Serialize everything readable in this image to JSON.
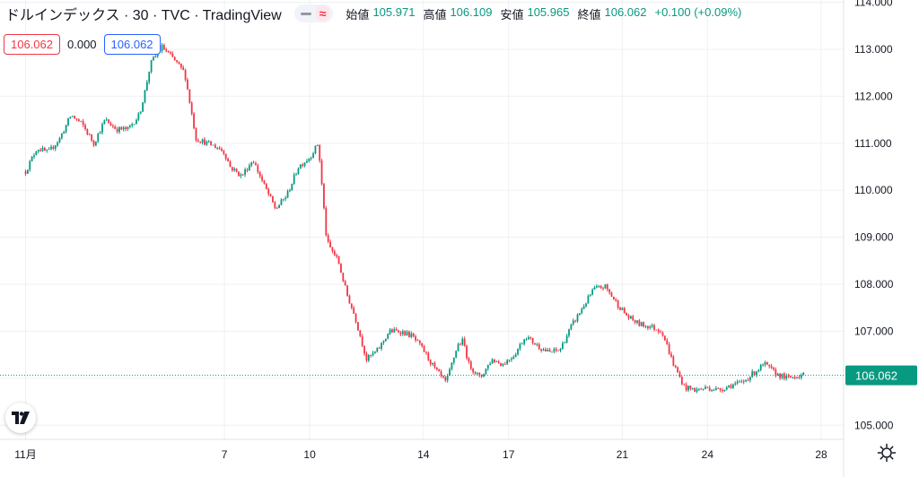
{
  "header": {
    "symbol_title": "ドルインデックス · 30 · TVC · TradingView",
    "ohlc": [
      {
        "label": "始値",
        "value": "105.971"
      },
      {
        "label": "高値",
        "value": "106.109"
      },
      {
        "label": "安値",
        "value": "105.965"
      },
      {
        "label": "終値",
        "value": "106.062"
      },
      {
        "label": "",
        "value": "+0.100 (+0.09%)"
      }
    ]
  },
  "badges": {
    "left_price": "106.062",
    "middle": "0.000",
    "right_price": "106.062"
  },
  "colors": {
    "up": "#089981",
    "down": "#f23645",
    "last_price_bg": "#089981",
    "grid": "#eef0f3",
    "axis_text": "#131722"
  },
  "icons": {
    "logo": "tradingview-logo-icon",
    "settings": "gear-icon"
  },
  "chart_data": {
    "type": "line",
    "title": "ドルインデックス · 30 · TVC · TradingView",
    "y_axis": {
      "ticks": [
        "105.000",
        "106.000",
        "107.000",
        "108.000",
        "109.000",
        "110.000",
        "111.000",
        "112.000",
        "113.000",
        "114.000"
      ],
      "range": [
        104.7,
        114.05
      ]
    },
    "x_axis": {
      "ticks": [
        "11月",
        "7",
        "10",
        "14",
        "17",
        "21",
        "24",
        "28"
      ]
    },
    "last_price": "106.062",
    "grid": true,
    "series": [
      {
        "x": [
          0,
          0.4,
          0.8,
          1.2,
          1.6,
          2.0,
          2.4,
          2.8,
          3.2,
          3.6,
          4.0,
          4.2,
          4.4,
          4.8,
          5.2,
          5.6,
          6.0,
          6.4,
          6.8,
          7.0,
          7.2,
          7.6,
          8.0,
          8.4,
          8.8,
          9.2,
          9.6,
          10.0,
          10.3,
          10.6,
          11.0,
          11.3,
          11.6,
          12.0,
          12.4,
          12.8,
          13.2,
          13.6,
          14.0,
          14.4,
          14.8,
          15.2,
          15.4,
          15.6,
          16.0,
          16.4,
          16.8,
          17.2,
          17.6,
          18.0,
          18.4,
          18.8,
          19.2,
          19.6,
          20.0,
          20.4,
          20.8,
          21.2,
          21.6,
          22.0,
          22.4,
          22.8,
          23.2,
          23.6,
          24.0,
          24.4,
          24.8,
          25.2,
          25.6,
          26.0,
          26.4,
          26.8,
          27.2,
          27.4
        ],
        "y": [
          110.4,
          110.9,
          110.8,
          111.1,
          111.6,
          111.4,
          111.0,
          111.5,
          111.3,
          111.3,
          111.6,
          112.1,
          112.7,
          113.05,
          112.8,
          112.5,
          111.1,
          111.0,
          110.9,
          110.8,
          110.5,
          110.3,
          110.65,
          110.1,
          109.6,
          109.9,
          110.5,
          110.7,
          111.0,
          108.9,
          108.5,
          107.8,
          107.3,
          106.4,
          106.6,
          107.0,
          107.0,
          106.9,
          106.6,
          106.2,
          105.9,
          106.7,
          106.8,
          106.3,
          106.0,
          106.4,
          106.3,
          106.5,
          106.9,
          106.7,
          106.55,
          106.6,
          107.1,
          107.5,
          107.9,
          107.95,
          107.6,
          107.3,
          107.15,
          107.1,
          107.0,
          106.3,
          105.8,
          105.75,
          105.8,
          105.75,
          105.85,
          105.9,
          106.1,
          106.3,
          106.1,
          106.0,
          106.062,
          106.062
        ]
      }
    ]
  }
}
